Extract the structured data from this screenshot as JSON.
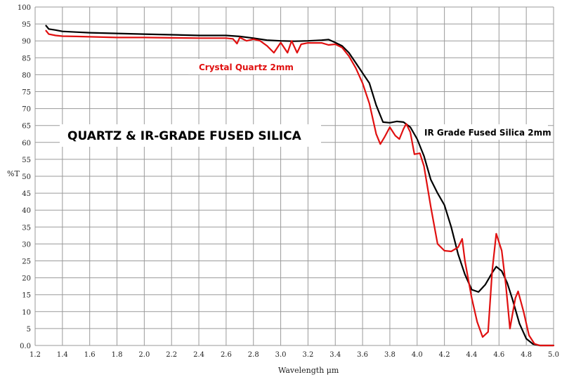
{
  "chart_data": {
    "type": "line",
    "title": "QUARTZ & IR-GRADE FUSED SILICA",
    "xlabel": "Wavelength μm",
    "ylabel": "%T",
    "xlim": [
      1.2,
      5.0
    ],
    "ylim": [
      0,
      100
    ],
    "x_ticks": [
      "1.2",
      "1.4",
      "1.6",
      "1.8",
      "2.0",
      "2.2",
      "2.4",
      "2.6",
      "2.8",
      "3.0",
      "3.2",
      "3.4",
      "3.6",
      "3.8",
      "4.0",
      "4.2",
      "4.4",
      "4.6",
      "4.8",
      "5.0"
    ],
    "y_ticks": [
      "0.0",
      "5",
      "10",
      "15",
      "20",
      "25",
      "30",
      "35",
      "40",
      "45",
      "50",
      "55",
      "60",
      "65",
      "70",
      "75",
      "80",
      "85",
      "90",
      "95",
      "100"
    ],
    "grid": true,
    "series": [
      {
        "name": "IR Grade Fused Silica 2mm",
        "color": "#000000",
        "points": [
          [
            1.28,
            94.5
          ],
          [
            1.3,
            93.5
          ],
          [
            1.35,
            93.2
          ],
          [
            1.4,
            92.8
          ],
          [
            1.5,
            92.6
          ],
          [
            1.6,
            92.4
          ],
          [
            1.8,
            92.2
          ],
          [
            2.0,
            92.0
          ],
          [
            2.2,
            91.8
          ],
          [
            2.4,
            91.6
          ],
          [
            2.6,
            91.6
          ],
          [
            2.7,
            91.3
          ],
          [
            2.8,
            90.8
          ],
          [
            2.9,
            90.2
          ],
          [
            3.0,
            90.0
          ],
          [
            3.1,
            89.9
          ],
          [
            3.2,
            90.0
          ],
          [
            3.3,
            90.2
          ],
          [
            3.35,
            90.4
          ],
          [
            3.4,
            89.5
          ],
          [
            3.45,
            88.5
          ],
          [
            3.5,
            86.5
          ],
          [
            3.55,
            83.5
          ],
          [
            3.6,
            80.5
          ],
          [
            3.65,
            77.5
          ],
          [
            3.7,
            71.0
          ],
          [
            3.75,
            66.0
          ],
          [
            3.8,
            65.8
          ],
          [
            3.85,
            66.2
          ],
          [
            3.9,
            66.0
          ],
          [
            3.95,
            64.5
          ],
          [
            4.0,
            61.0
          ],
          [
            4.05,
            56.0
          ],
          [
            4.1,
            49.0
          ],
          [
            4.15,
            45.0
          ],
          [
            4.2,
            41.5
          ],
          [
            4.25,
            35.0
          ],
          [
            4.3,
            27.0
          ],
          [
            4.35,
            21.0
          ],
          [
            4.4,
            16.5
          ],
          [
            4.45,
            15.8
          ],
          [
            4.5,
            18.0
          ],
          [
            4.55,
            21.5
          ],
          [
            4.58,
            23.3
          ],
          [
            4.62,
            22.0
          ],
          [
            4.66,
            18.5
          ],
          [
            4.7,
            13.5
          ],
          [
            4.75,
            6.5
          ],
          [
            4.8,
            2.0
          ],
          [
            4.85,
            0.4
          ],
          [
            4.9,
            0.0
          ],
          [
            5.0,
            0.0
          ]
        ]
      },
      {
        "name": "Crystal Quartz 2mm",
        "color": "#e01010",
        "points": [
          [
            1.28,
            93.0
          ],
          [
            1.3,
            92.0
          ],
          [
            1.35,
            91.6
          ],
          [
            1.4,
            91.4
          ],
          [
            1.5,
            91.3
          ],
          [
            1.6,
            91.2
          ],
          [
            1.8,
            91.0
          ],
          [
            2.0,
            91.0
          ],
          [
            2.2,
            90.9
          ],
          [
            2.4,
            90.8
          ],
          [
            2.6,
            90.8
          ],
          [
            2.65,
            90.6
          ],
          [
            2.68,
            89.2
          ],
          [
            2.7,
            91.0
          ],
          [
            2.75,
            90.0
          ],
          [
            2.8,
            90.5
          ],
          [
            2.85,
            90.0
          ],
          [
            2.9,
            88.5
          ],
          [
            2.95,
            86.5
          ],
          [
            3.0,
            89.5
          ],
          [
            3.05,
            86.5
          ],
          [
            3.08,
            90.0
          ],
          [
            3.12,
            86.5
          ],
          [
            3.15,
            89.0
          ],
          [
            3.2,
            89.4
          ],
          [
            3.3,
            89.4
          ],
          [
            3.35,
            88.8
          ],
          [
            3.4,
            89.0
          ],
          [
            3.45,
            88.0
          ],
          [
            3.5,
            85.5
          ],
          [
            3.55,
            82.0
          ],
          [
            3.6,
            77.5
          ],
          [
            3.65,
            71.5
          ],
          [
            3.7,
            62.5
          ],
          [
            3.73,
            59.5
          ],
          [
            3.76,
            61.5
          ],
          [
            3.8,
            64.5
          ],
          [
            3.84,
            62.0
          ],
          [
            3.87,
            61.0
          ],
          [
            3.9,
            64.0
          ],
          [
            3.92,
            65.5
          ],
          [
            3.95,
            63.0
          ],
          [
            3.98,
            56.5
          ],
          [
            4.02,
            56.8
          ],
          [
            4.05,
            53.0
          ],
          [
            4.1,
            41.0
          ],
          [
            4.15,
            30.0
          ],
          [
            4.2,
            28.0
          ],
          [
            4.25,
            27.8
          ],
          [
            4.3,
            29.0
          ],
          [
            4.33,
            31.5
          ],
          [
            4.35,
            25.0
          ],
          [
            4.4,
            14.0
          ],
          [
            4.44,
            7.0
          ],
          [
            4.48,
            2.5
          ],
          [
            4.52,
            4.0
          ],
          [
            4.55,
            22.0
          ],
          [
            4.58,
            33.0
          ],
          [
            4.62,
            28.0
          ],
          [
            4.65,
            18.0
          ],
          [
            4.68,
            5.0
          ],
          [
            4.72,
            14.0
          ],
          [
            4.74,
            16.0
          ],
          [
            4.78,
            10.0
          ],
          [
            4.82,
            3.0
          ],
          [
            4.86,
            0.5
          ],
          [
            4.9,
            0.0
          ],
          [
            5.0,
            0.0
          ]
        ]
      }
    ],
    "annotations": [
      {
        "text": "Crystal Quartz 2mm",
        "color": "#e01010"
      },
      {
        "text": "IR Grade Fused Silica 2mm",
        "color": "#000000"
      }
    ]
  }
}
